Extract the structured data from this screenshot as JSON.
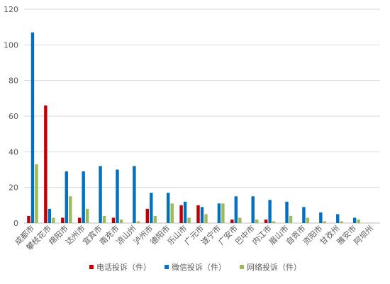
{
  "chart_data": {
    "type": "bar",
    "title": "",
    "xlabel": "",
    "ylabel": "",
    "ylim": [
      0,
      120
    ],
    "yticks": [
      0,
      20,
      40,
      60,
      80,
      100,
      120
    ],
    "grid": true,
    "legend_position": "bottom",
    "categories": [
      "成都市",
      "攀枝花市",
      "绵阳市",
      "达州市",
      "宜宾市",
      "南充市",
      "凉山州",
      "泸州市",
      "德阳市",
      "乐山市",
      "广元市",
      "遂宁市",
      "广安市",
      "巴中市",
      "内江市",
      "眉山市",
      "自贡市",
      "资阳市",
      "甘孜州",
      "雅安市",
      "阿坝州"
    ],
    "series": [
      {
        "name": "电话投诉（件）",
        "color": "#c00000",
        "values": [
          4,
          66,
          3,
          3,
          0,
          3,
          0,
          8,
          0,
          10,
          10,
          0,
          2,
          0,
          2,
          0,
          0,
          0,
          0,
          0,
          0
        ]
      },
      {
        "name": "微信投诉（件）",
        "color": "#0070c0",
        "values": [
          107,
          8,
          29,
          29,
          32,
          30,
          32,
          17,
          17,
          12,
          9,
          11,
          15,
          15,
          13,
          12,
          9,
          6,
          5,
          3,
          0
        ]
      },
      {
        "name": "网络投诉（件）",
        "color": "#9bbb59",
        "values": [
          33,
          3,
          15,
          8,
          4,
          2,
          1,
          4,
          11,
          3,
          5,
          11,
          3,
          2,
          1,
          4,
          3,
          1,
          1,
          2,
          0
        ]
      }
    ]
  }
}
